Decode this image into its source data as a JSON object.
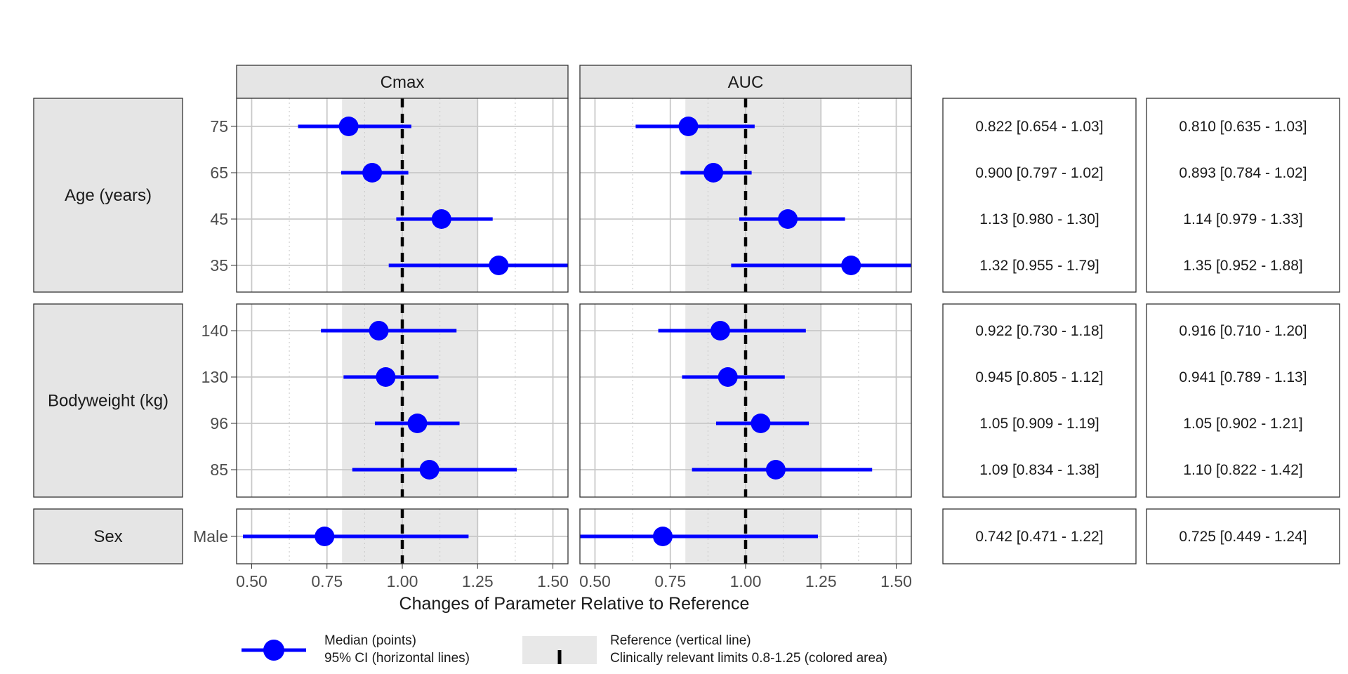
{
  "chart_data": {
    "type": "forest",
    "columns": [
      "Cmax",
      "AUC"
    ],
    "xlabel": "Changes of Parameter Relative to Reference",
    "xlim": [
      0.45,
      1.55
    ],
    "x_ticks": [
      "0.50",
      "0.75",
      "1.00",
      "1.25",
      "1.50"
    ],
    "x_tick_values": [
      0.5,
      0.75,
      1.0,
      1.25,
      1.5
    ],
    "reference_line": 1.0,
    "reference_band": [
      0.8,
      1.25
    ],
    "groups": [
      {
        "name": "Age (years)",
        "rows": [
          {
            "label": "75",
            "Cmax": {
              "median": 0.822,
              "low": 0.654,
              "high": 1.03,
              "text": "0.822 [0.654 - 1.03]"
            },
            "AUC": {
              "median": 0.81,
              "low": 0.635,
              "high": 1.03,
              "text": "0.810 [0.635 - 1.03]"
            }
          },
          {
            "label": "65",
            "Cmax": {
              "median": 0.9,
              "low": 0.797,
              "high": 1.02,
              "text": "0.900 [0.797 - 1.02]"
            },
            "AUC": {
              "median": 0.893,
              "low": 0.784,
              "high": 1.02,
              "text": "0.893 [0.784 - 1.02]"
            }
          },
          {
            "label": "45",
            "Cmax": {
              "median": 1.13,
              "low": 0.98,
              "high": 1.3,
              "text": "1.13 [0.980 - 1.30]"
            },
            "AUC": {
              "median": 1.14,
              "low": 0.979,
              "high": 1.33,
              "text": "1.14 [0.979 - 1.33]"
            }
          },
          {
            "label": "35",
            "Cmax": {
              "median": 1.32,
              "low": 0.955,
              "high": 1.79,
              "text": "1.32 [0.955 - 1.79]"
            },
            "AUC": {
              "median": 1.35,
              "low": 0.952,
              "high": 1.88,
              "text": "1.35 [0.952 - 1.88]"
            }
          }
        ]
      },
      {
        "name": "Bodyweight (kg)",
        "rows": [
          {
            "label": "140",
            "Cmax": {
              "median": 0.922,
              "low": 0.73,
              "high": 1.18,
              "text": "0.922 [0.730 - 1.18]"
            },
            "AUC": {
              "median": 0.916,
              "low": 0.71,
              "high": 1.2,
              "text": "0.916 [0.710 - 1.20]"
            }
          },
          {
            "label": "130",
            "Cmax": {
              "median": 0.945,
              "low": 0.805,
              "high": 1.12,
              "text": "0.945 [0.805 - 1.12]"
            },
            "AUC": {
              "median": 0.941,
              "low": 0.789,
              "high": 1.13,
              "text": "0.941 [0.789 - 1.13]"
            }
          },
          {
            "label": "96",
            "Cmax": {
              "median": 1.05,
              "low": 0.909,
              "high": 1.19,
              "text": "1.05 [0.909 - 1.19]"
            },
            "AUC": {
              "median": 1.05,
              "low": 0.902,
              "high": 1.21,
              "text": "1.05 [0.902 - 1.21]"
            }
          },
          {
            "label": "85",
            "Cmax": {
              "median": 1.09,
              "low": 0.834,
              "high": 1.38,
              "text": "1.09 [0.834 - 1.38]"
            },
            "AUC": {
              "median": 1.1,
              "low": 0.822,
              "high": 1.42,
              "text": "1.10 [0.822 - 1.42]"
            }
          }
        ]
      },
      {
        "name": "Sex",
        "rows": [
          {
            "label": "Male",
            "Cmax": {
              "median": 0.742,
              "low": 0.471,
              "high": 1.22,
              "text": "0.742 [0.471 - 1.22]"
            },
            "AUC": {
              "median": 0.725,
              "low": 0.449,
              "high": 1.24,
              "text": "0.725 [0.449 - 1.24]"
            }
          }
        ]
      }
    ],
    "legend": {
      "points_label": "Median (points)",
      "lines_label": "95% CI (horizontal lines)",
      "reference_label": "Reference (vertical line)",
      "limits_label": "Clinically relevant limits 0.8-1.25 (colored area)"
    },
    "colors": {
      "point": "#0000ff",
      "band": "#e8e8e8",
      "strip": "#e5e5e5",
      "reference": "#000000",
      "grid": "#c8c8c8"
    }
  }
}
